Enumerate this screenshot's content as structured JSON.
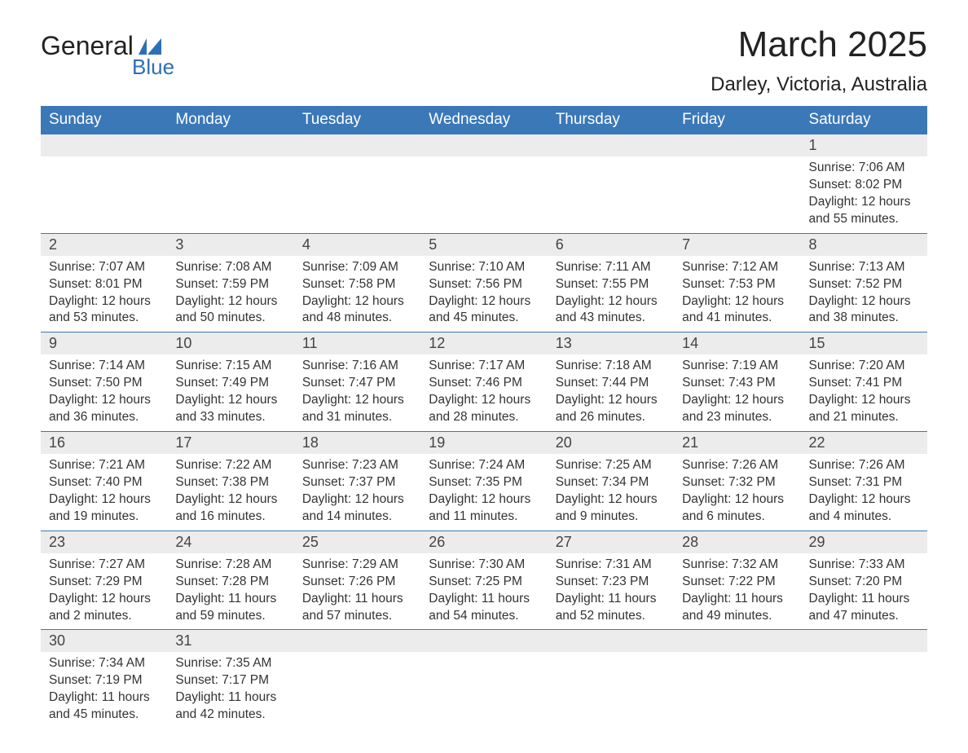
{
  "logo": {
    "line1": "General",
    "line2": "Blue",
    "shape_color": "#2d6fb6"
  },
  "title": "March 2025",
  "location": "Darley, Victoria, Australia",
  "colors": {
    "header_bg": "#3b78b8",
    "header_text": "#ffffff",
    "daynum_bg": "#ececec",
    "row_border": "#3b78b8",
    "body_text": "#333333"
  },
  "day_headers": [
    "Sunday",
    "Monday",
    "Tuesday",
    "Wednesday",
    "Thursday",
    "Friday",
    "Saturday"
  ],
  "weeks": [
    [
      null,
      null,
      null,
      null,
      null,
      null,
      {
        "n": "1",
        "sr": "Sunrise: 7:06 AM",
        "ss": "Sunset: 8:02 PM",
        "d1": "Daylight: 12 hours",
        "d2": "and 55 minutes."
      }
    ],
    [
      {
        "n": "2",
        "sr": "Sunrise: 7:07 AM",
        "ss": "Sunset: 8:01 PM",
        "d1": "Daylight: 12 hours",
        "d2": "and 53 minutes."
      },
      {
        "n": "3",
        "sr": "Sunrise: 7:08 AM",
        "ss": "Sunset: 7:59 PM",
        "d1": "Daylight: 12 hours",
        "d2": "and 50 minutes."
      },
      {
        "n": "4",
        "sr": "Sunrise: 7:09 AM",
        "ss": "Sunset: 7:58 PM",
        "d1": "Daylight: 12 hours",
        "d2": "and 48 minutes."
      },
      {
        "n": "5",
        "sr": "Sunrise: 7:10 AM",
        "ss": "Sunset: 7:56 PM",
        "d1": "Daylight: 12 hours",
        "d2": "and 45 minutes."
      },
      {
        "n": "6",
        "sr": "Sunrise: 7:11 AM",
        "ss": "Sunset: 7:55 PM",
        "d1": "Daylight: 12 hours",
        "d2": "and 43 minutes."
      },
      {
        "n": "7",
        "sr": "Sunrise: 7:12 AM",
        "ss": "Sunset: 7:53 PM",
        "d1": "Daylight: 12 hours",
        "d2": "and 41 minutes."
      },
      {
        "n": "8",
        "sr": "Sunrise: 7:13 AM",
        "ss": "Sunset: 7:52 PM",
        "d1": "Daylight: 12 hours",
        "d2": "and 38 minutes."
      }
    ],
    [
      {
        "n": "9",
        "sr": "Sunrise: 7:14 AM",
        "ss": "Sunset: 7:50 PM",
        "d1": "Daylight: 12 hours",
        "d2": "and 36 minutes."
      },
      {
        "n": "10",
        "sr": "Sunrise: 7:15 AM",
        "ss": "Sunset: 7:49 PM",
        "d1": "Daylight: 12 hours",
        "d2": "and 33 minutes."
      },
      {
        "n": "11",
        "sr": "Sunrise: 7:16 AM",
        "ss": "Sunset: 7:47 PM",
        "d1": "Daylight: 12 hours",
        "d2": "and 31 minutes."
      },
      {
        "n": "12",
        "sr": "Sunrise: 7:17 AM",
        "ss": "Sunset: 7:46 PM",
        "d1": "Daylight: 12 hours",
        "d2": "and 28 minutes."
      },
      {
        "n": "13",
        "sr": "Sunrise: 7:18 AM",
        "ss": "Sunset: 7:44 PM",
        "d1": "Daylight: 12 hours",
        "d2": "and 26 minutes."
      },
      {
        "n": "14",
        "sr": "Sunrise: 7:19 AM",
        "ss": "Sunset: 7:43 PM",
        "d1": "Daylight: 12 hours",
        "d2": "and 23 minutes."
      },
      {
        "n": "15",
        "sr": "Sunrise: 7:20 AM",
        "ss": "Sunset: 7:41 PM",
        "d1": "Daylight: 12 hours",
        "d2": "and 21 minutes."
      }
    ],
    [
      {
        "n": "16",
        "sr": "Sunrise: 7:21 AM",
        "ss": "Sunset: 7:40 PM",
        "d1": "Daylight: 12 hours",
        "d2": "and 19 minutes."
      },
      {
        "n": "17",
        "sr": "Sunrise: 7:22 AM",
        "ss": "Sunset: 7:38 PM",
        "d1": "Daylight: 12 hours",
        "d2": "and 16 minutes."
      },
      {
        "n": "18",
        "sr": "Sunrise: 7:23 AM",
        "ss": "Sunset: 7:37 PM",
        "d1": "Daylight: 12 hours",
        "d2": "and 14 minutes."
      },
      {
        "n": "19",
        "sr": "Sunrise: 7:24 AM",
        "ss": "Sunset: 7:35 PM",
        "d1": "Daylight: 12 hours",
        "d2": "and 11 minutes."
      },
      {
        "n": "20",
        "sr": "Sunrise: 7:25 AM",
        "ss": "Sunset: 7:34 PM",
        "d1": "Daylight: 12 hours",
        "d2": "and 9 minutes."
      },
      {
        "n": "21",
        "sr": "Sunrise: 7:26 AM",
        "ss": "Sunset: 7:32 PM",
        "d1": "Daylight: 12 hours",
        "d2": "and 6 minutes."
      },
      {
        "n": "22",
        "sr": "Sunrise: 7:26 AM",
        "ss": "Sunset: 7:31 PM",
        "d1": "Daylight: 12 hours",
        "d2": "and 4 minutes."
      }
    ],
    [
      {
        "n": "23",
        "sr": "Sunrise: 7:27 AM",
        "ss": "Sunset: 7:29 PM",
        "d1": "Daylight: 12 hours",
        "d2": "and 2 minutes."
      },
      {
        "n": "24",
        "sr": "Sunrise: 7:28 AM",
        "ss": "Sunset: 7:28 PM",
        "d1": "Daylight: 11 hours",
        "d2": "and 59 minutes."
      },
      {
        "n": "25",
        "sr": "Sunrise: 7:29 AM",
        "ss": "Sunset: 7:26 PM",
        "d1": "Daylight: 11 hours",
        "d2": "and 57 minutes."
      },
      {
        "n": "26",
        "sr": "Sunrise: 7:30 AM",
        "ss": "Sunset: 7:25 PM",
        "d1": "Daylight: 11 hours",
        "d2": "and 54 minutes."
      },
      {
        "n": "27",
        "sr": "Sunrise: 7:31 AM",
        "ss": "Sunset: 7:23 PM",
        "d1": "Daylight: 11 hours",
        "d2": "and 52 minutes."
      },
      {
        "n": "28",
        "sr": "Sunrise: 7:32 AM",
        "ss": "Sunset: 7:22 PM",
        "d1": "Daylight: 11 hours",
        "d2": "and 49 minutes."
      },
      {
        "n": "29",
        "sr": "Sunrise: 7:33 AM",
        "ss": "Sunset: 7:20 PM",
        "d1": "Daylight: 11 hours",
        "d2": "and 47 minutes."
      }
    ],
    [
      {
        "n": "30",
        "sr": "Sunrise: 7:34 AM",
        "ss": "Sunset: 7:19 PM",
        "d1": "Daylight: 11 hours",
        "d2": "and 45 minutes."
      },
      {
        "n": "31",
        "sr": "Sunrise: 7:35 AM",
        "ss": "Sunset: 7:17 PM",
        "d1": "Daylight: 11 hours",
        "d2": "and 42 minutes."
      },
      null,
      null,
      null,
      null,
      null
    ]
  ]
}
